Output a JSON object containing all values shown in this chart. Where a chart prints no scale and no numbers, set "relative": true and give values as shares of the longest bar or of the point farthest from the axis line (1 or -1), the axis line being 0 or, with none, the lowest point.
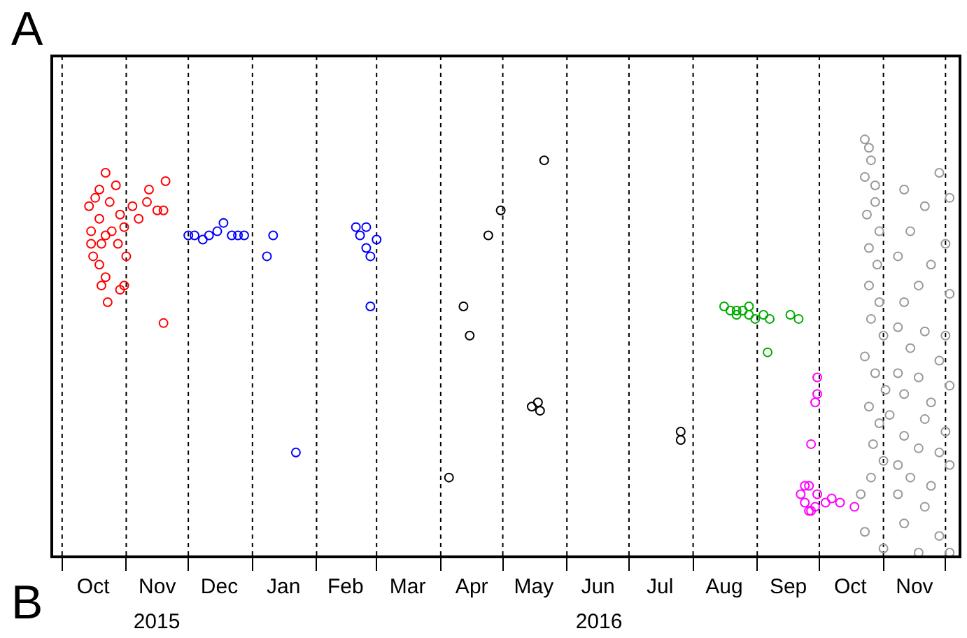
{
  "chart_data": {
    "type": "scatter",
    "relative": true,
    "marker": "circle",
    "grid": false,
    "legend": false,
    "xlim": [
      "2015-09-26",
      "2016-12-08"
    ],
    "xticks": [
      {
        "value": "2015-10-01",
        "label": null
      },
      {
        "value": "2015-10-16",
        "label": "Oct"
      },
      {
        "value": "2015-11-01",
        "label": null
      },
      {
        "value": "2015-11-16",
        "label": "Nov"
      },
      {
        "value": "2015-12-01",
        "label": null
      },
      {
        "value": "2015-12-16",
        "label": "Dec"
      },
      {
        "value": "2016-01-01",
        "label": null
      },
      {
        "value": "2016-01-16",
        "label": "Jan"
      },
      {
        "value": "2016-02-01",
        "label": null
      },
      {
        "value": "2016-02-15",
        "label": "Feb"
      },
      {
        "value": "2016-03-01",
        "label": null
      },
      {
        "value": "2016-03-16",
        "label": "Mar"
      },
      {
        "value": "2016-04-01",
        "label": null
      },
      {
        "value": "2016-04-16",
        "label": "Apr"
      },
      {
        "value": "2016-05-01",
        "label": null
      },
      {
        "value": "2016-05-16",
        "label": "May"
      },
      {
        "value": "2016-06-01",
        "label": null
      },
      {
        "value": "2016-06-16",
        "label": "Jun"
      },
      {
        "value": "2016-07-01",
        "label": null
      },
      {
        "value": "2016-07-16",
        "label": "Jul"
      },
      {
        "value": "2016-08-01",
        "label": null
      },
      {
        "value": "2016-08-16",
        "label": "Aug"
      },
      {
        "value": "2016-09-01",
        "label": null
      },
      {
        "value": "2016-09-16",
        "label": "Sep"
      },
      {
        "value": "2016-10-01",
        "label": null
      },
      {
        "value": "2016-10-16",
        "label": "Oct"
      },
      {
        "value": "2016-11-01",
        "label": null
      },
      {
        "value": "2016-11-16",
        "label": "Nov"
      },
      {
        "value": "2016-12-01",
        "label": null
      }
    ],
    "ref_lines": [
      {
        "axis": "x",
        "value": "2015-10-01",
        "color": "#000000",
        "line_style": "dashed"
      },
      {
        "axis": "x",
        "value": "2015-11-01",
        "color": "#000000",
        "line_style": "dashed"
      },
      {
        "axis": "x",
        "value": "2015-12-01",
        "color": "#000000",
        "line_style": "dashed"
      },
      {
        "axis": "x",
        "value": "2016-01-01",
        "color": "#000000",
        "line_style": "dashed"
      },
      {
        "axis": "x",
        "value": "2016-02-01",
        "color": "#000000",
        "line_style": "dashed"
      },
      {
        "axis": "x",
        "value": "2016-03-01",
        "color": "#000000",
        "line_style": "dashed"
      },
      {
        "axis": "x",
        "value": "2016-04-01",
        "color": "#000000",
        "line_style": "dashed"
      },
      {
        "axis": "x",
        "value": "2016-05-01",
        "color": "#000000",
        "line_style": "dashed"
      },
      {
        "axis": "x",
        "value": "2016-06-01",
        "color": "#000000",
        "line_style": "dashed"
      },
      {
        "axis": "x",
        "value": "2016-07-01",
        "color": "#000000",
        "line_style": "dashed"
      },
      {
        "axis": "x",
        "value": "2016-08-01",
        "color": "#000000",
        "line_style": "dashed"
      },
      {
        "axis": "x",
        "value": "2016-09-01",
        "color": "#000000",
        "line_style": "dashed"
      },
      {
        "axis": "x",
        "value": "2016-10-01",
        "color": "#000000",
        "line_style": "dashed"
      },
      {
        "axis": "x",
        "value": "2016-11-01",
        "color": "#000000",
        "line_style": "dashed"
      },
      {
        "axis": "x",
        "value": "2016-12-01",
        "color": "#000000",
        "line_style": "dashed"
      }
    ],
    "annotations": [
      "A",
      "B",
      "2015",
      "2016"
    ],
    "series": [
      {
        "color": "#ff0000",
        "x": [
          "2015-10-14",
          "2015-10-15",
          "2015-10-17",
          "2015-10-19",
          "2015-10-20",
          "2015-10-22",
          "2015-10-16",
          "2015-10-19",
          "2015-10-22",
          "2015-10-20",
          "2015-10-25",
          "2015-10-29",
          "2015-10-31",
          "2015-11-01",
          "2015-10-31",
          "2015-10-19",
          "2015-10-22",
          "2015-10-24",
          "2015-10-27",
          "2015-11-04",
          "2015-11-11",
          "2015-11-12",
          "2015-11-16",
          "2015-11-19",
          "2015-11-20",
          "2015-11-07",
          "2015-11-19",
          "2015-10-23",
          "2015-10-29",
          "2015-10-15",
          "2015-10-28"
        ],
        "values": [
          0.84,
          0.78,
          0.86,
          0.81,
          0.75,
          0.77,
          0.72,
          0.7,
          0.67,
          0.65,
          0.78,
          0.82,
          0.79,
          0.72,
          0.65,
          0.88,
          0.92,
          0.85,
          0.89,
          0.84,
          0.85,
          0.88,
          0.83,
          0.83,
          0.9,
          0.81,
          0.56,
          0.61,
          0.64,
          0.75,
          0.75
        ]
      },
      {
        "color": "#0000ff",
        "x": [
          "2015-12-01",
          "2015-12-04",
          "2015-12-08",
          "2015-12-11",
          "2015-12-15",
          "2015-12-18",
          "2015-12-22",
          "2015-12-25",
          "2015-12-28",
          "2016-01-08",
          "2016-01-11",
          "2016-01-22",
          "2016-02-20",
          "2016-02-22",
          "2016-02-25",
          "2016-02-27",
          "2016-03-01",
          "2016-02-27",
          "2016-02-25"
        ],
        "values": [
          0.77,
          0.77,
          0.76,
          0.77,
          0.78,
          0.8,
          0.77,
          0.77,
          0.77,
          0.72,
          0.77,
          0.25,
          0.79,
          0.77,
          0.74,
          0.72,
          0.76,
          0.6,
          0.79
        ]
      },
      {
        "color": "#000000",
        "x": [
          "2016-04-12",
          "2016-04-15",
          "2016-04-05",
          "2016-04-24",
          "2016-04-30",
          "2016-05-21",
          "2016-05-15",
          "2016-05-18",
          "2016-05-19",
          "2016-07-26",
          "2016-07-26"
        ],
        "values": [
          0.6,
          0.53,
          0.19,
          0.77,
          0.83,
          0.95,
          0.36,
          0.37,
          0.35,
          0.28,
          0.3
        ]
      },
      {
        "color": "#00aa00",
        "x": [
          "2016-08-16",
          "2016-08-19",
          "2016-08-22",
          "2016-08-25",
          "2016-08-28",
          "2016-08-31",
          "2016-09-04",
          "2016-09-06",
          "2016-09-07",
          "2016-09-17",
          "2016-09-21",
          "2016-08-22",
          "2016-08-28"
        ],
        "values": [
          0.6,
          0.59,
          0.58,
          0.59,
          0.6,
          0.57,
          0.58,
          0.49,
          0.57,
          0.58,
          0.57,
          0.59,
          0.58
        ]
      },
      {
        "color": "#ff00ff",
        "x": [
          "2016-09-22",
          "2016-09-24",
          "2016-09-26",
          "2016-09-27",
          "2016-09-29",
          "2016-09-30",
          "2016-09-29",
          "2016-09-30",
          "2016-09-30",
          "2016-09-27",
          "2016-10-04",
          "2016-10-07",
          "2016-10-11",
          "2016-10-18",
          "2016-09-24",
          "2016-09-26"
        ],
        "values": [
          0.15,
          0.13,
          0.17,
          0.11,
          0.12,
          0.15,
          0.37,
          0.39,
          0.43,
          0.27,
          0.13,
          0.14,
          0.13,
          0.12,
          0.17,
          0.11
        ]
      },
      {
        "color": "#999999",
        "x": [
          "2016-10-23",
          "2016-10-25",
          "2016-10-26",
          "2016-10-23",
          "2016-10-28",
          "2016-10-28",
          "2016-10-24",
          "2016-10-30",
          "2016-10-25",
          "2016-10-29",
          "2016-10-25",
          "2016-10-30",
          "2016-10-26",
          "2016-11-01",
          "2016-10-23",
          "2016-10-28",
          "2016-11-02",
          "2016-10-25",
          "2016-10-30",
          "2016-10-27",
          "2016-11-01",
          "2016-10-26",
          "2016-10-21",
          "2016-10-23",
          "2016-11-01",
          "2016-11-11",
          "2016-11-28",
          "2016-12-03",
          "2016-11-21",
          "2016-11-14",
          "2016-12-01",
          "2016-11-08",
          "2016-11-24",
          "2016-11-18",
          "2016-12-03",
          "2016-11-11",
          "2016-11-08",
          "2016-11-21",
          "2016-12-01",
          "2016-11-14",
          "2016-11-28",
          "2016-11-08",
          "2016-11-18",
          "2016-12-03",
          "2016-11-11",
          "2016-11-24",
          "2016-11-04",
          "2016-11-21",
          "2016-12-01",
          "2016-11-11",
          "2016-11-18",
          "2016-11-28",
          "2016-11-08",
          "2016-12-03",
          "2016-11-14",
          "2016-11-24",
          "2016-11-08",
          "2016-11-21",
          "2016-11-11",
          "2016-11-28",
          "2016-11-18",
          "2016-12-03"
        ],
        "values": [
          1.0,
          0.98,
          0.95,
          0.91,
          0.89,
          0.85,
          0.82,
          0.78,
          0.74,
          0.7,
          0.65,
          0.61,
          0.57,
          0.53,
          0.48,
          0.44,
          0.4,
          0.36,
          0.32,
          0.27,
          0.23,
          0.19,
          0.15,
          0.06,
          0.02,
          0.88,
          0.92,
          0.86,
          0.84,
          0.78,
          0.75,
          0.72,
          0.7,
          0.65,
          0.63,
          0.61,
          0.55,
          0.54,
          0.53,
          0.5,
          0.47,
          0.44,
          0.43,
          0.41,
          0.39,
          0.37,
          0.34,
          0.33,
          0.3,
          0.29,
          0.26,
          0.25,
          0.22,
          0.22,
          0.19,
          0.17,
          0.15,
          0.12,
          0.08,
          0.05,
          0.01,
          0.01
        ]
      }
    ]
  }
}
